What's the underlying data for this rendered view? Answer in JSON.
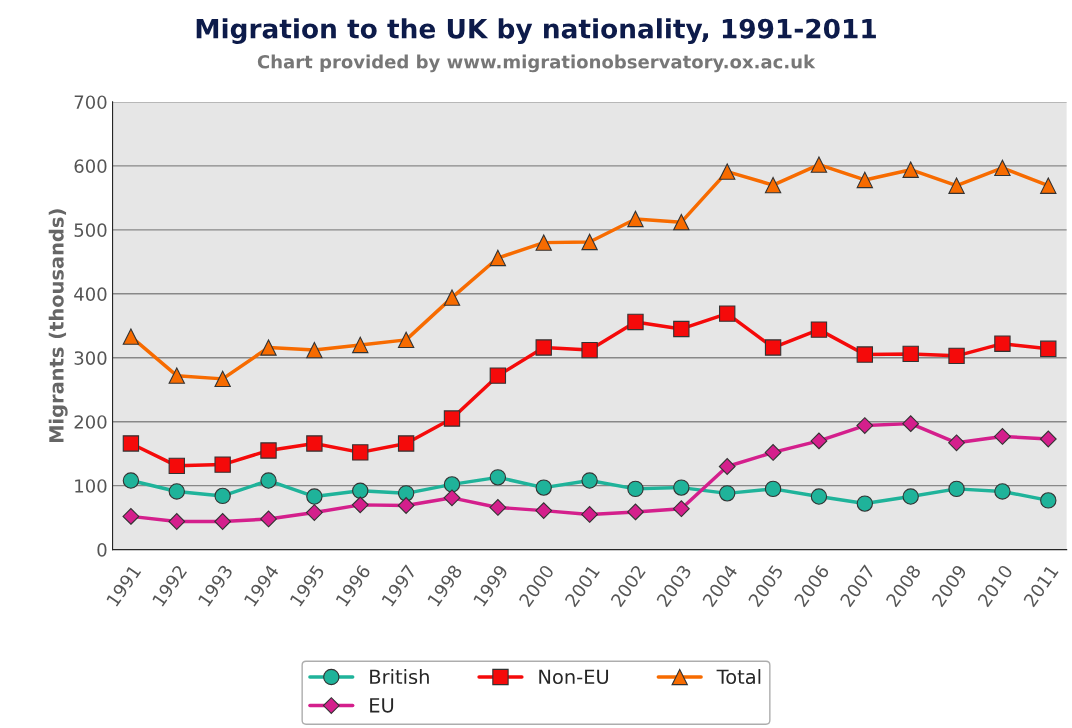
{
  "chart_data": {
    "type": "line",
    "title": "Migration to the UK by nationality, 1991-2011",
    "subtitle": "Chart provided by www.migrationobservatory.ox.ac.uk",
    "ylabel": "Migrants (thousands)",
    "categories": [
      "1991",
      "1992",
      "1993",
      "1994",
      "1995",
      "1996",
      "1997",
      "1998",
      "1999",
      "2000",
      "2001",
      "2002",
      "2003",
      "2004",
      "2005",
      "2006",
      "2007",
      "2008",
      "2009",
      "2010",
      "2011"
    ],
    "series": [
      {
        "name": "British",
        "color": "#1fb39a",
        "marker": "circle",
        "values": [
          108,
          91,
          84,
          108,
          83,
          92,
          88,
          102,
          113,
          97,
          108,
          95,
          97,
          88,
          95,
          83,
          72,
          83,
          95,
          91,
          77
        ]
      },
      {
        "name": "EU",
        "color": "#d41f8c",
        "marker": "diamond",
        "values": [
          52,
          44,
          44,
          48,
          58,
          70,
          69,
          81,
          66,
          61,
          55,
          59,
          64,
          130,
          152,
          170,
          194,
          197,
          167,
          177,
          173
        ]
      },
      {
        "name": "Non-EU",
        "color": "#f50a0a",
        "marker": "square",
        "values": [
          166,
          131,
          133,
          155,
          166,
          152,
          166,
          205,
          272,
          316,
          312,
          356,
          345,
          369,
          316,
          344,
          305,
          306,
          303,
          322,
          314
        ]
      },
      {
        "name": "Total",
        "color": "#f76b00",
        "marker": "triangle",
        "values": [
          333,
          272,
          267,
          316,
          312,
          320,
          328,
          394,
          456,
          480,
          481,
          517,
          512,
          591,
          570,
          602,
          578,
          594,
          569,
          597,
          569
        ]
      }
    ],
    "ylim": [
      0,
      700
    ],
    "yticks": [
      0,
      100,
      200,
      300,
      400,
      500,
      600,
      700
    ],
    "grid": "y",
    "legend": "bottom",
    "line_style": "solid"
  }
}
